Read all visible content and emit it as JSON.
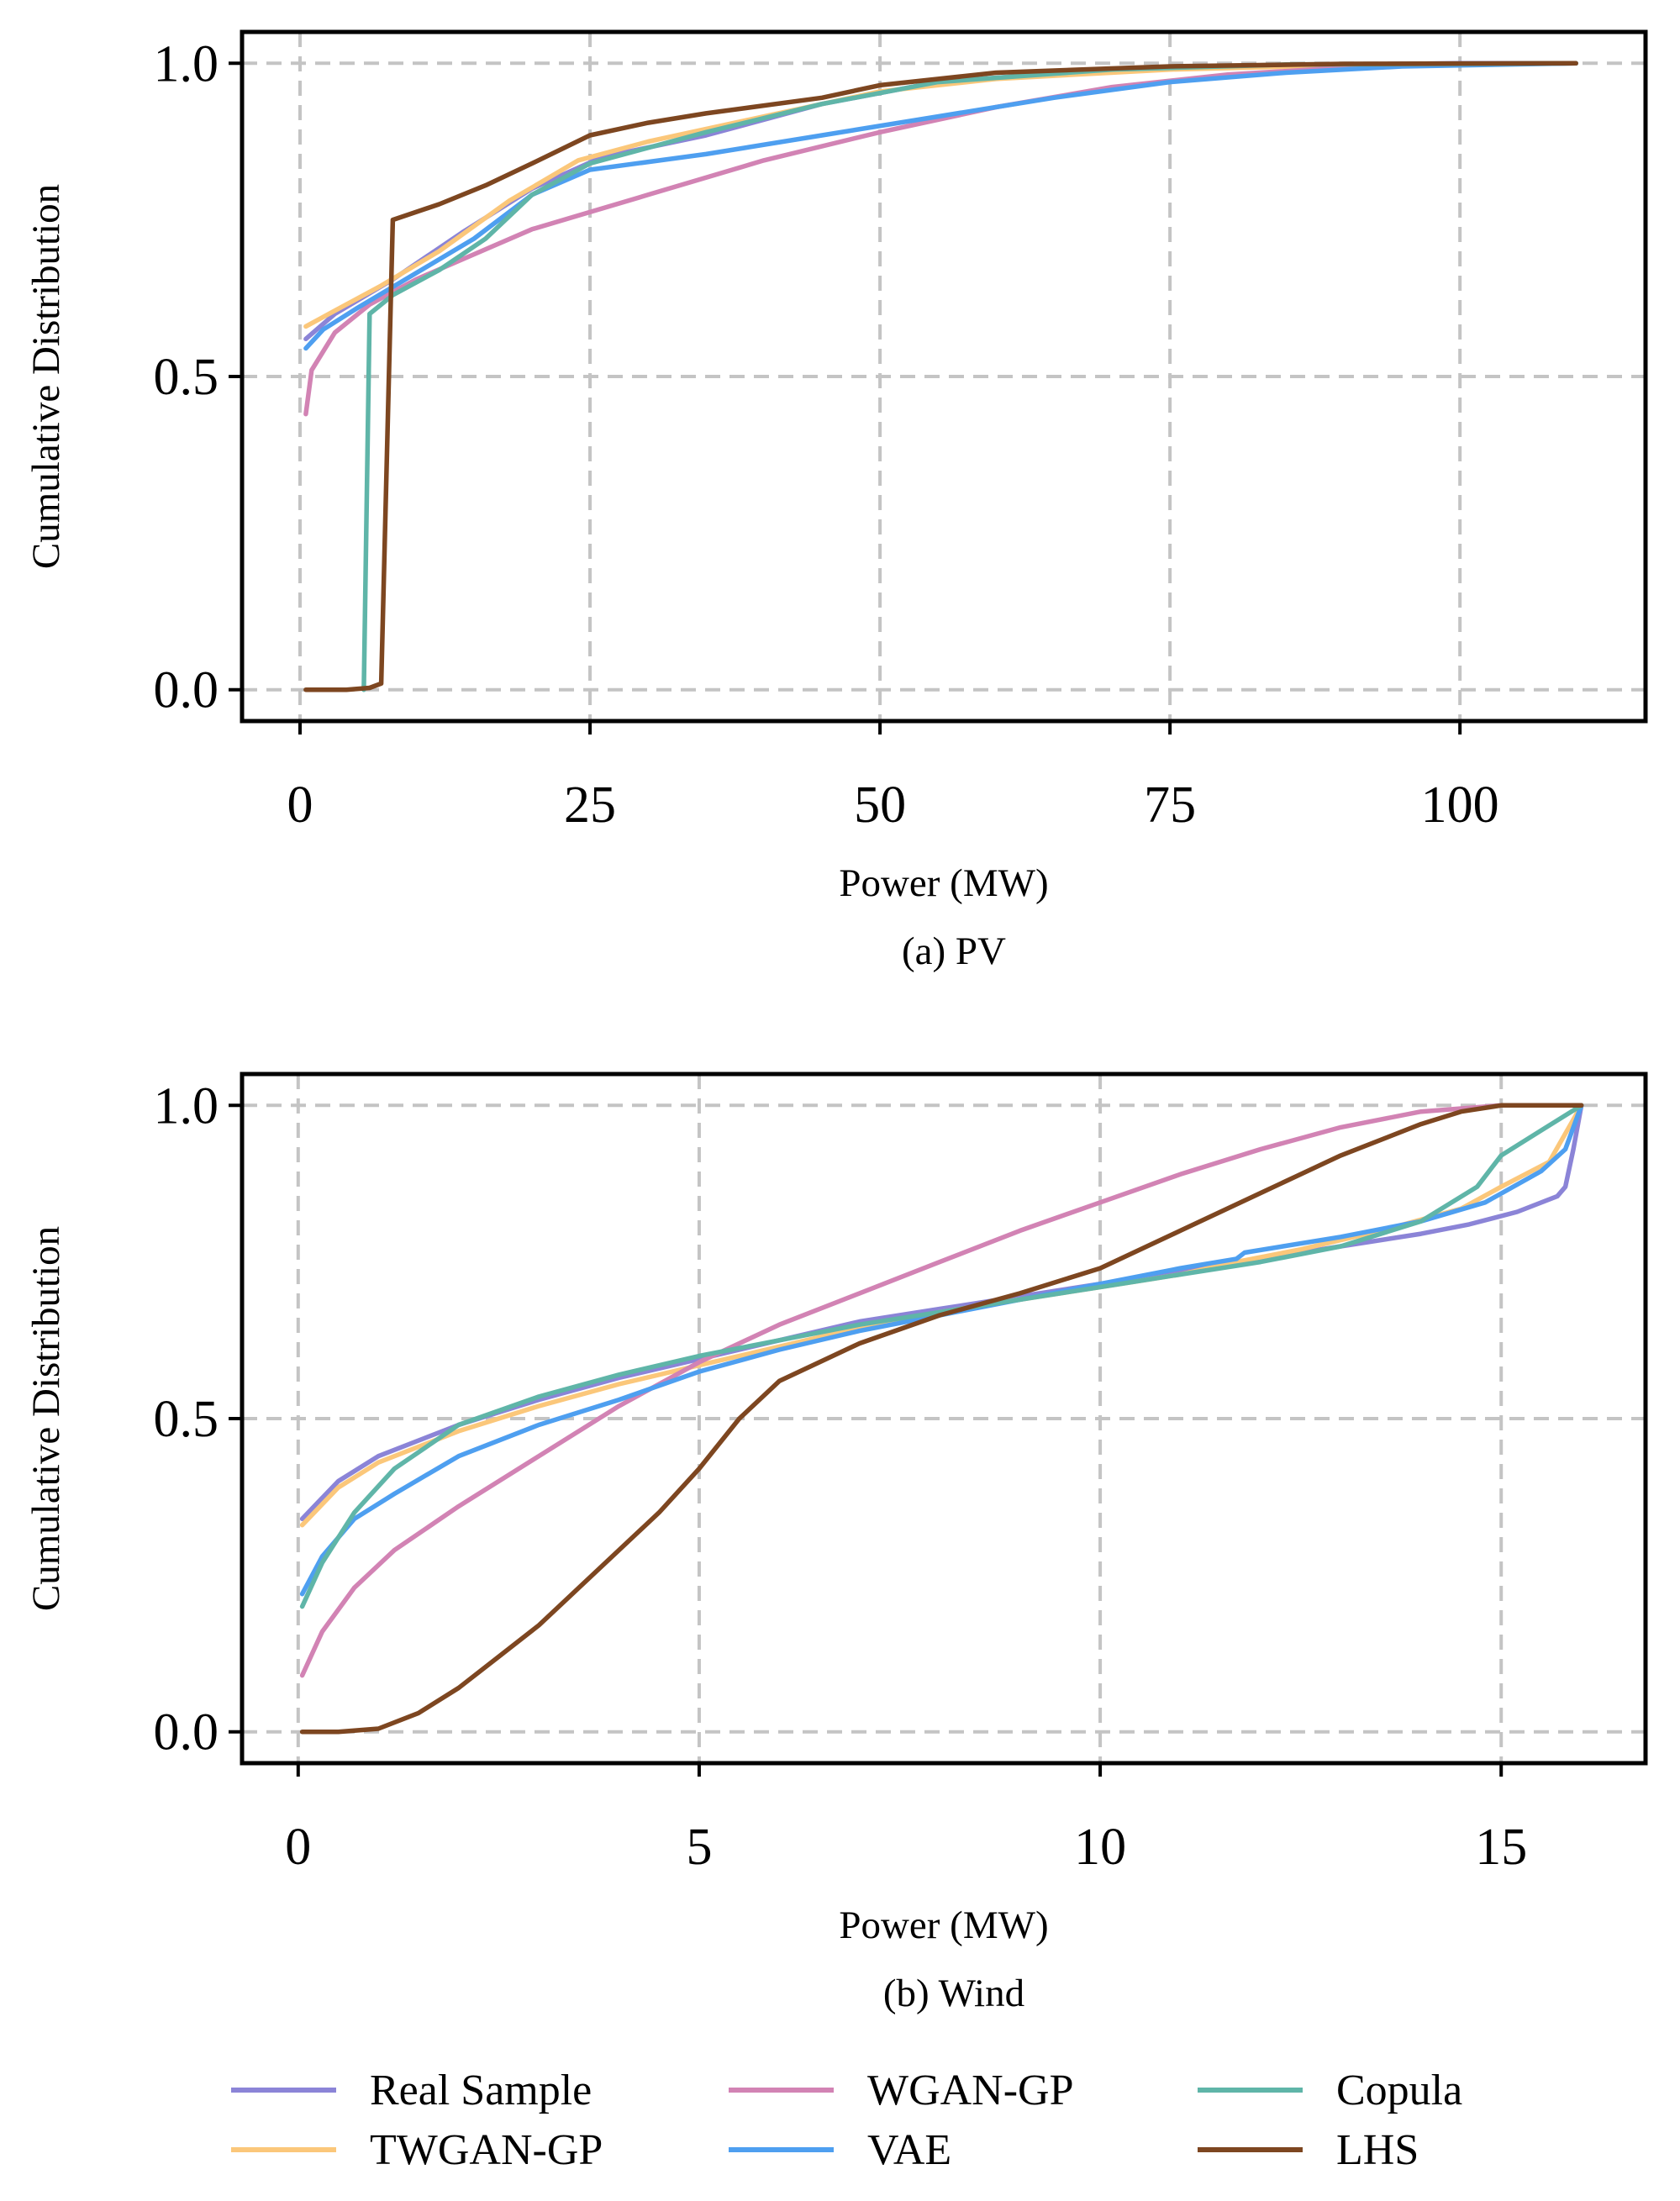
{
  "legend": {
    "items": [
      {
        "label": "Real Sample",
        "color": "#8b84d7"
      },
      {
        "label": "WGAN-GP",
        "color": "#d283b4"
      },
      {
        "label": "Copula",
        "color": "#5fb5a8"
      },
      {
        "label": "TWGAN-GP",
        "color": "#fbc77a"
      },
      {
        "label": "VAE",
        "color": "#4e9ff0"
      },
      {
        "label": "LHS",
        "color": "#7d4620"
      }
    ]
  },
  "chart_data": [
    {
      "type": "line",
      "title": "",
      "caption": "(a) PV",
      "xlabel": "Power (MW)",
      "ylabel": "Cumulative Distribution",
      "xlim": [
        -5,
        116
      ],
      "ylim": [
        -0.05,
        1.05
      ],
      "xticks": [
        0,
        25,
        50,
        75,
        100
      ],
      "xtick_labels": [
        "0",
        "25",
        "50",
        "75",
        "100"
      ],
      "yticks": [
        0.0,
        0.5,
        1.0
      ],
      "ytick_labels": [
        "0.0",
        "0.5",
        "1.0"
      ],
      "grid": true,
      "series": [
        {
          "name": "Real Sample",
          "color": "#8b84d7",
          "points": [
            [
              0.5,
              0.56
            ],
            [
              3,
              0.6
            ],
            [
              8,
              0.655
            ],
            [
              14,
              0.73
            ],
            [
              20,
              0.8
            ],
            [
              26,
              0.85
            ],
            [
              35,
              0.885
            ],
            [
              45,
              0.935
            ],
            [
              55,
              0.97
            ],
            [
              70,
              0.99
            ],
            [
              85,
              0.997
            ],
            [
              100,
              1.0
            ],
            [
              110,
              1.0
            ]
          ]
        },
        {
          "name": "WGAN-GP",
          "color": "#d283b4",
          "points": [
            [
              0.5,
              0.44
            ],
            [
              1,
              0.51
            ],
            [
              3,
              0.57
            ],
            [
              6,
              0.615
            ],
            [
              10,
              0.655
            ],
            [
              15,
              0.695
            ],
            [
              20,
              0.735
            ],
            [
              30,
              0.79
            ],
            [
              40,
              0.845
            ],
            [
              50,
              0.89
            ],
            [
              60,
              0.93
            ],
            [
              70,
              0.962
            ],
            [
              80,
              0.982
            ],
            [
              90,
              0.993
            ],
            [
              100,
              0.998
            ],
            [
              110,
              1.0
            ]
          ]
        },
        {
          "name": "Copula",
          "color": "#5fb5a8",
          "points": [
            [
              5.5,
              0.0
            ],
            [
              6,
              0.6
            ],
            [
              8,
              0.63
            ],
            [
              12,
              0.67
            ],
            [
              16,
              0.72
            ],
            [
              20,
              0.79
            ],
            [
              25,
              0.84
            ],
            [
              35,
              0.89
            ],
            [
              45,
              0.935
            ],
            [
              55,
              0.97
            ],
            [
              70,
              0.99
            ],
            [
              85,
              0.998
            ],
            [
              110,
              1.0
            ]
          ]
        },
        {
          "name": "TWGAN-GP",
          "color": "#fbc77a",
          "points": [
            [
              0.5,
              0.58
            ],
            [
              3,
              0.605
            ],
            [
              7,
              0.645
            ],
            [
              12,
              0.7
            ],
            [
              18,
              0.78
            ],
            [
              24,
              0.845
            ],
            [
              30,
              0.875
            ],
            [
              40,
              0.915
            ],
            [
              50,
              0.955
            ],
            [
              60,
              0.975
            ],
            [
              75,
              0.99
            ],
            [
              90,
              0.997
            ],
            [
              110,
              1.0
            ]
          ]
        },
        {
          "name": "VAE",
          "color": "#4e9ff0",
          "points": [
            [
              0.5,
              0.545
            ],
            [
              2,
              0.575
            ],
            [
              5,
              0.61
            ],
            [
              10,
              0.665
            ],
            [
              15,
              0.72
            ],
            [
              20,
              0.79
            ],
            [
              25,
              0.83
            ],
            [
              35,
              0.855
            ],
            [
              45,
              0.885
            ],
            [
              55,
              0.915
            ],
            [
              65,
              0.945
            ],
            [
              75,
              0.97
            ],
            [
              85,
              0.985
            ],
            [
              95,
              0.995
            ],
            [
              110,
              1.0
            ]
          ]
        },
        {
          "name": "LHS",
          "color": "#7d4620",
          "points": [
            [
              0.5,
              0.0
            ],
            [
              4,
              0.0
            ],
            [
              6,
              0.003
            ],
            [
              7,
              0.01
            ],
            [
              8,
              0.75
            ],
            [
              12,
              0.775
            ],
            [
              16,
              0.805
            ],
            [
              20,
              0.84
            ],
            [
              25,
              0.885
            ],
            [
              30,
              0.905
            ],
            [
              35,
              0.92
            ],
            [
              45,
              0.945
            ],
            [
              50,
              0.965
            ],
            [
              60,
              0.985
            ],
            [
              75,
              0.995
            ],
            [
              90,
              0.999
            ],
            [
              110,
              1.0
            ]
          ]
        }
      ]
    },
    {
      "type": "line",
      "title": "",
      "caption": "(b) Wind",
      "xlabel": "Power (MW)",
      "ylabel": "Cumulative Distribution",
      "xlim": [
        -0.7,
        16.8
      ],
      "ylim": [
        -0.05,
        1.05
      ],
      "xticks": [
        0,
        5,
        10,
        15
      ],
      "xtick_labels": [
        "0",
        "5",
        "10",
        "15"
      ],
      "yticks": [
        0.0,
        0.5,
        1.0
      ],
      "ytick_labels": [
        "0.0",
        "0.5",
        "1.0"
      ],
      "grid": true,
      "series": [
        {
          "name": "Real Sample",
          "color": "#8b84d7",
          "points": [
            [
              0.05,
              0.34
            ],
            [
              0.5,
              0.4
            ],
            [
              1,
              0.44
            ],
            [
              2,
              0.49
            ],
            [
              3,
              0.53
            ],
            [
              4,
              0.565
            ],
            [
              5,
              0.595
            ],
            [
              6,
              0.625
            ],
            [
              7,
              0.655
            ],
            [
              8,
              0.675
            ],
            [
              9,
              0.695
            ],
            [
              10,
              0.715
            ],
            [
              11,
              0.735
            ],
            [
              12,
              0.755
            ],
            [
              13,
              0.775
            ],
            [
              14,
              0.795
            ],
            [
              14.6,
              0.81
            ],
            [
              15.2,
              0.83
            ],
            [
              15.7,
              0.855
            ],
            [
              15.8,
              0.87
            ],
            [
              15.9,
              0.93
            ],
            [
              16,
              1.0
            ]
          ]
        },
        {
          "name": "WGAN-GP",
          "color": "#d283b4",
          "points": [
            [
              0.05,
              0.09
            ],
            [
              0.3,
              0.16
            ],
            [
              0.7,
              0.23
            ],
            [
              1.2,
              0.29
            ],
            [
              2,
              0.36
            ],
            [
              3,
              0.44
            ],
            [
              4,
              0.52
            ],
            [
              5,
              0.59
            ],
            [
              6,
              0.65
            ],
            [
              7,
              0.7
            ],
            [
              8,
              0.75
            ],
            [
              9,
              0.8
            ],
            [
              10,
              0.845
            ],
            [
              11,
              0.89
            ],
            [
              12,
              0.93
            ],
            [
              13,
              0.965
            ],
            [
              14,
              0.99
            ],
            [
              15,
              1.0
            ],
            [
              16,
              1.0
            ]
          ]
        },
        {
          "name": "Copula",
          "color": "#5fb5a8",
          "points": [
            [
              0.05,
              0.2
            ],
            [
              0.3,
              0.27
            ],
            [
              0.7,
              0.35
            ],
            [
              1.2,
              0.42
            ],
            [
              2,
              0.49
            ],
            [
              3,
              0.535
            ],
            [
              4,
              0.57
            ],
            [
              5,
              0.6
            ],
            [
              6,
              0.625
            ],
            [
              7,
              0.65
            ],
            [
              8,
              0.67
            ],
            [
              9,
              0.69
            ],
            [
              10,
              0.71
            ],
            [
              11,
              0.73
            ],
            [
              12,
              0.75
            ],
            [
              13,
              0.775
            ],
            [
              14,
              0.815
            ],
            [
              14.7,
              0.87
            ],
            [
              15,
              0.92
            ],
            [
              15.5,
              0.96
            ],
            [
              16,
              1.0
            ]
          ]
        },
        {
          "name": "TWGAN-GP",
          "color": "#fbc77a",
          "points": [
            [
              0.05,
              0.33
            ],
            [
              0.5,
              0.39
            ],
            [
              1,
              0.43
            ],
            [
              2,
              0.48
            ],
            [
              3,
              0.52
            ],
            [
              4,
              0.555
            ],
            [
              5,
              0.585
            ],
            [
              6,
              0.615
            ],
            [
              7,
              0.645
            ],
            [
              8,
              0.67
            ],
            [
              9,
              0.69
            ],
            [
              10,
              0.71
            ],
            [
              11,
              0.73
            ],
            [
              11.7,
              0.75
            ],
            [
              12.5,
              0.77
            ],
            [
              13.5,
              0.8
            ],
            [
              14.5,
              0.835
            ],
            [
              15,
              0.87
            ],
            [
              15.6,
              0.91
            ],
            [
              16,
              1.0
            ]
          ]
        },
        {
          "name": "VAE",
          "color": "#4e9ff0",
          "points": [
            [
              0.05,
              0.22
            ],
            [
              0.3,
              0.28
            ],
            [
              0.7,
              0.34
            ],
            [
              1.2,
              0.38
            ],
            [
              2,
              0.44
            ],
            [
              3,
              0.49
            ],
            [
              4,
              0.53
            ],
            [
              5,
              0.575
            ],
            [
              6,
              0.61
            ],
            [
              7,
              0.64
            ],
            [
              8,
              0.665
            ],
            [
              9,
              0.69
            ],
            [
              10,
              0.715
            ],
            [
              11,
              0.74
            ],
            [
              11.7,
              0.755
            ],
            [
              11.8,
              0.765
            ],
            [
              13,
              0.79
            ],
            [
              14,
              0.815
            ],
            [
              14.8,
              0.845
            ],
            [
              15.5,
              0.895
            ],
            [
              15.8,
              0.93
            ],
            [
              16,
              1.0
            ]
          ]
        },
        {
          "name": "LHS",
          "color": "#7d4620",
          "points": [
            [
              0.05,
              0.0
            ],
            [
              0.5,
              0.0
            ],
            [
              1,
              0.005
            ],
            [
              1.5,
              0.03
            ],
            [
              2,
              0.07
            ],
            [
              2.5,
              0.12
            ],
            [
              3,
              0.17
            ],
            [
              3.5,
              0.23
            ],
            [
              4,
              0.29
            ],
            [
              4.5,
              0.35
            ],
            [
              5,
              0.42
            ],
            [
              5.5,
              0.5
            ],
            [
              6,
              0.56
            ],
            [
              7,
              0.62
            ],
            [
              8,
              0.665
            ],
            [
              9,
              0.7
            ],
            [
              10,
              0.74
            ],
            [
              11,
              0.8
            ],
            [
              12,
              0.86
            ],
            [
              13,
              0.92
            ],
            [
              14,
              0.97
            ],
            [
              14.5,
              0.99
            ],
            [
              15,
              1.0
            ],
            [
              16,
              1.0
            ]
          ]
        }
      ]
    }
  ]
}
